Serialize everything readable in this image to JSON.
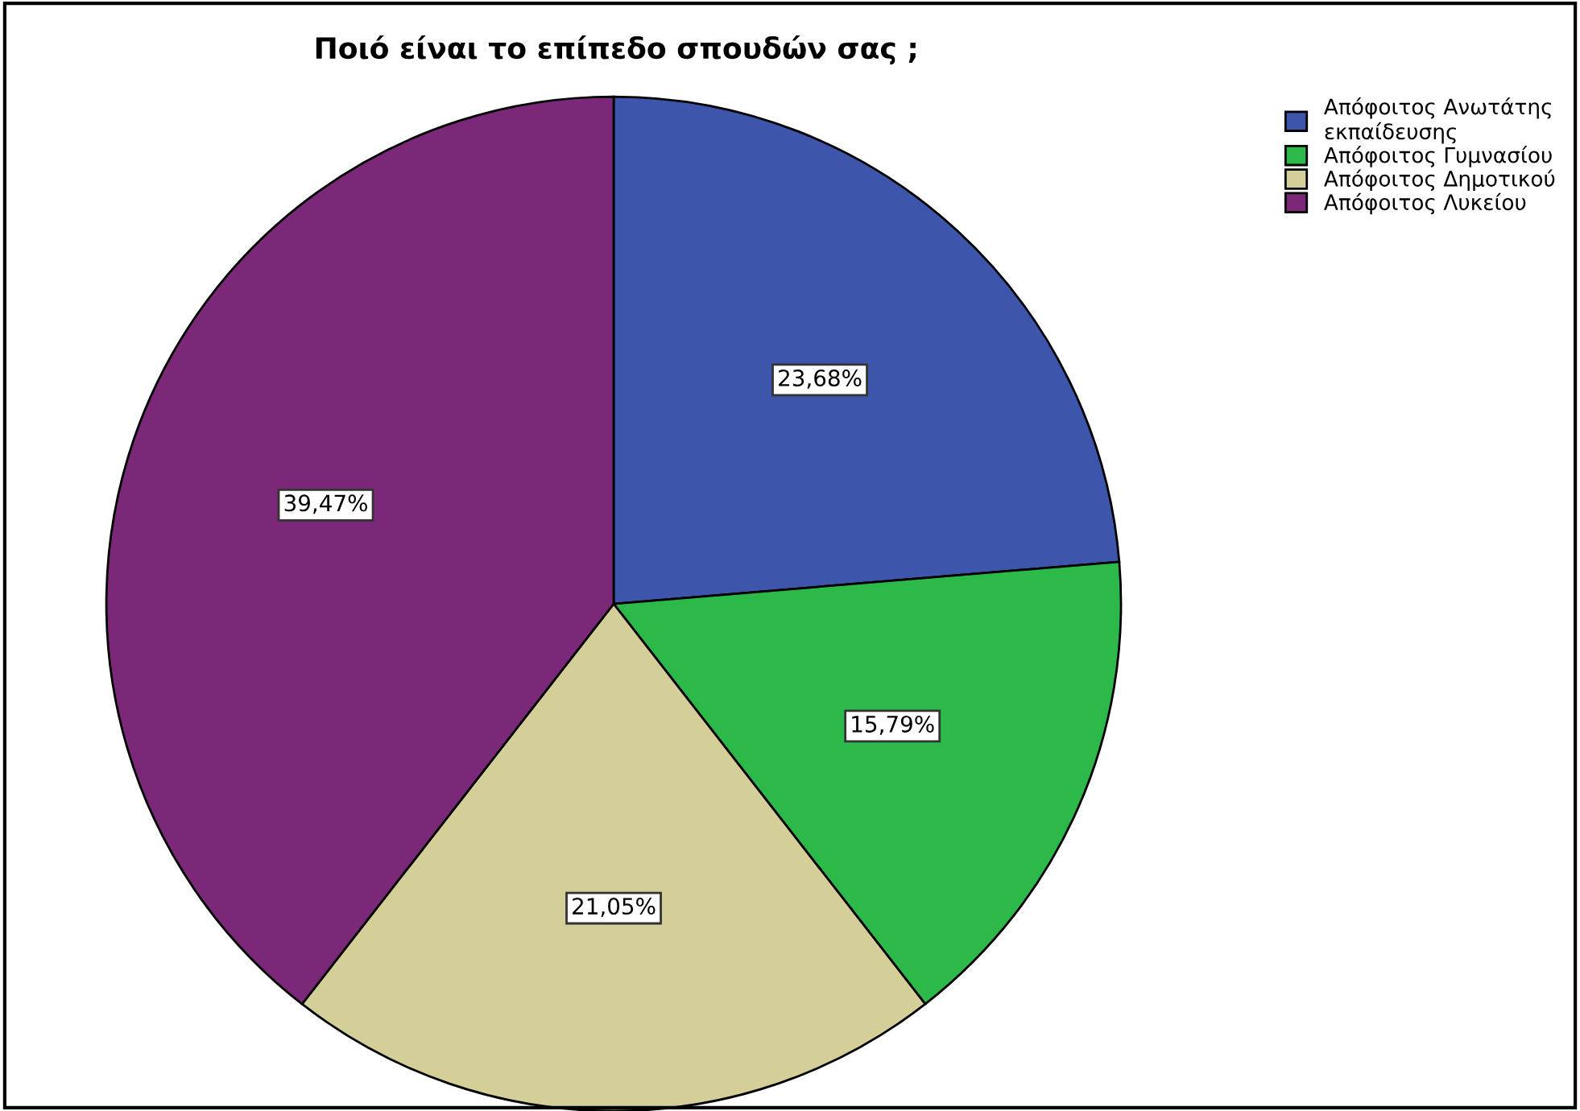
{
  "chart_data": {
    "type": "pie",
    "title": "Ποιό είναι το επίπεδο σπουδών σας ;",
    "categories": [
      "Απόφοιτος Ανωτάτης\nεκπαίδευσης",
      "Απόφοιτος Γυμνασίου",
      "Απόφοιτος Δημοτικού",
      "Απόφοιτος Λυκείου"
    ],
    "values": [
      23.68,
      15.79,
      21.05,
      39.47
    ],
    "colors": [
      "#3d56ab",
      "#2db84a",
      "#d4ce98",
      "#7b2879"
    ],
    "value_labels": [
      "23,68%",
      "15,79%",
      "21,05%",
      "39,47%"
    ],
    "legend": "top right"
  }
}
